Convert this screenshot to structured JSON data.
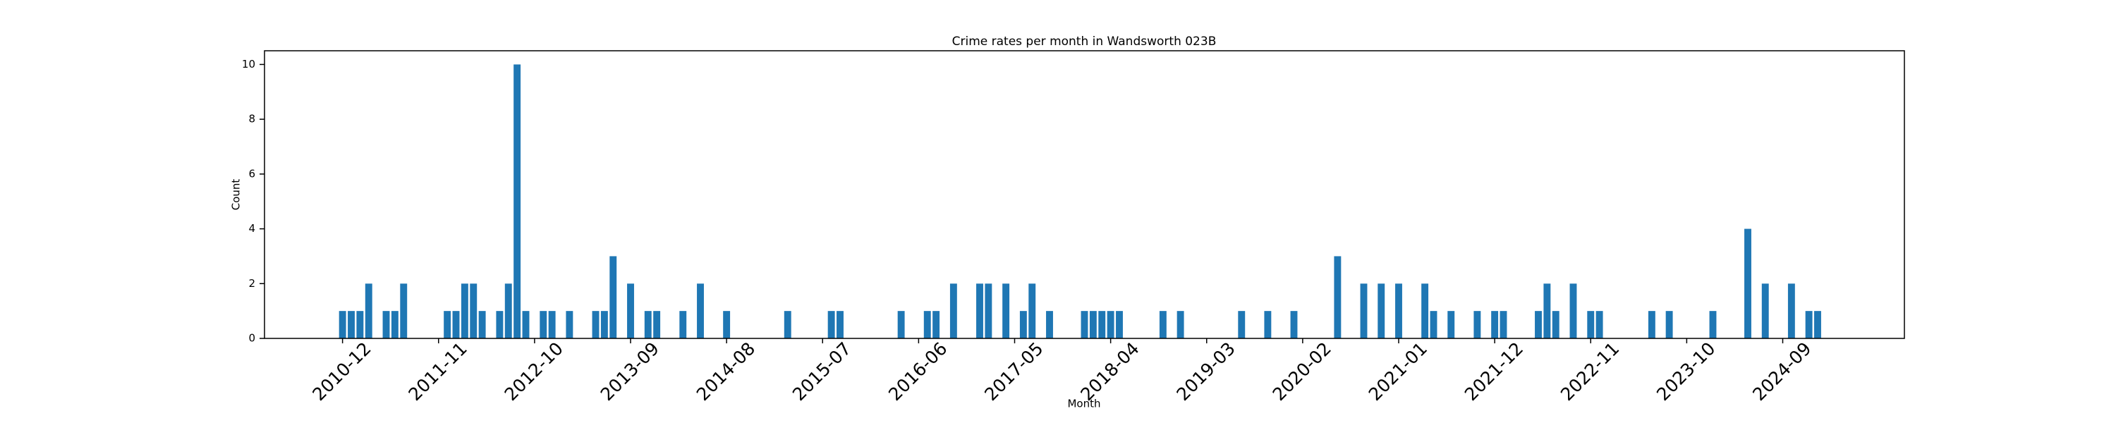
{
  "chart_data": {
    "type": "bar",
    "title": "Crime rates per month in Wandsworth 023B",
    "x_label": "Month",
    "y_label": "Count",
    "color": "#1f77b4",
    "categories": [
      "2010-12",
      null,
      null,
      null,
      null,
      null,
      null,
      null,
      null,
      null,
      null,
      "2011-11",
      null,
      null,
      null,
      null,
      null,
      null,
      null,
      null,
      null,
      null,
      "2012-10",
      null,
      null,
      null,
      null,
      null,
      null,
      null,
      null,
      null,
      null,
      "2013-09",
      null,
      null,
      null,
      null,
      null,
      null,
      null,
      null,
      null,
      null,
      "2014-08",
      null,
      null,
      null,
      null,
      null,
      null,
      null,
      null,
      null,
      null,
      "2015-07",
      null,
      null,
      null,
      null,
      null,
      null,
      null,
      null,
      null,
      null,
      "2016-06",
      null,
      null,
      null,
      null,
      null,
      null,
      null,
      null,
      null,
      null,
      "2017-05",
      null,
      null,
      null,
      null,
      null,
      null,
      null,
      null,
      null,
      null,
      "2018-04",
      null,
      null,
      null,
      null,
      null,
      null,
      null,
      null,
      null,
      null,
      "2019-03",
      null,
      null,
      null,
      null,
      null,
      null,
      null,
      null,
      null,
      null,
      "2020-02",
      null,
      null,
      null,
      null,
      null,
      null,
      null,
      null,
      null,
      null,
      "2021-01",
      null,
      null,
      null,
      null,
      null,
      null,
      null,
      null,
      null,
      null,
      "2021-12",
      null,
      null,
      null,
      null,
      null,
      null,
      null,
      null,
      null,
      null,
      "2022-11",
      null,
      null,
      null,
      null,
      null,
      null,
      null,
      null,
      null,
      null,
      "2023-10",
      null,
      null,
      null,
      null,
      null,
      null,
      null,
      null,
      null,
      null,
      "2024-09",
      null,
      null,
      null,
      null,
      null
    ],
    "values": [
      1,
      1,
      1,
      2,
      0,
      1,
      1,
      2,
      0,
      0,
      0,
      0,
      1,
      1,
      2,
      2,
      1,
      0,
      1,
      2,
      10,
      1,
      0,
      1,
      1,
      0,
      1,
      0,
      0,
      1,
      1,
      3,
      0,
      2,
      0,
      1,
      1,
      0,
      0,
      1,
      0,
      2,
      0,
      0,
      1,
      0,
      0,
      0,
      0,
      0,
      0,
      1,
      0,
      0,
      0,
      0,
      1,
      1,
      0,
      0,
      0,
      0,
      0,
      0,
      1,
      0,
      0,
      1,
      1,
      0,
      2,
      0,
      0,
      2,
      2,
      0,
      2,
      0,
      1,
      2,
      0,
      1,
      0,
      0,
      0,
      1,
      1,
      1,
      1,
      1,
      0,
      0,
      0,
      0,
      1,
      0,
      1,
      0,
      0,
      0,
      0,
      0,
      0,
      1,
      0,
      0,
      1,
      0,
      0,
      1,
      0,
      0,
      0,
      0,
      3,
      0,
      0,
      2,
      0,
      2,
      0,
      2,
      0,
      0,
      2,
      1,
      0,
      1,
      0,
      0,
      1,
      0,
      1,
      1,
      0,
      0,
      0,
      1,
      2,
      1,
      0,
      2,
      0,
      1,
      1,
      0,
      0,
      0,
      0,
      0,
      1,
      0,
      1,
      0,
      0,
      0,
      0,
      1,
      0,
      0,
      0,
      4,
      0,
      2,
      0,
      0,
      2,
      0,
      1,
      1,
      0
    ],
    "ylim": [
      0,
      10.5
    ],
    "yticks": [
      0,
      2,
      4,
      6,
      8,
      10
    ]
  }
}
